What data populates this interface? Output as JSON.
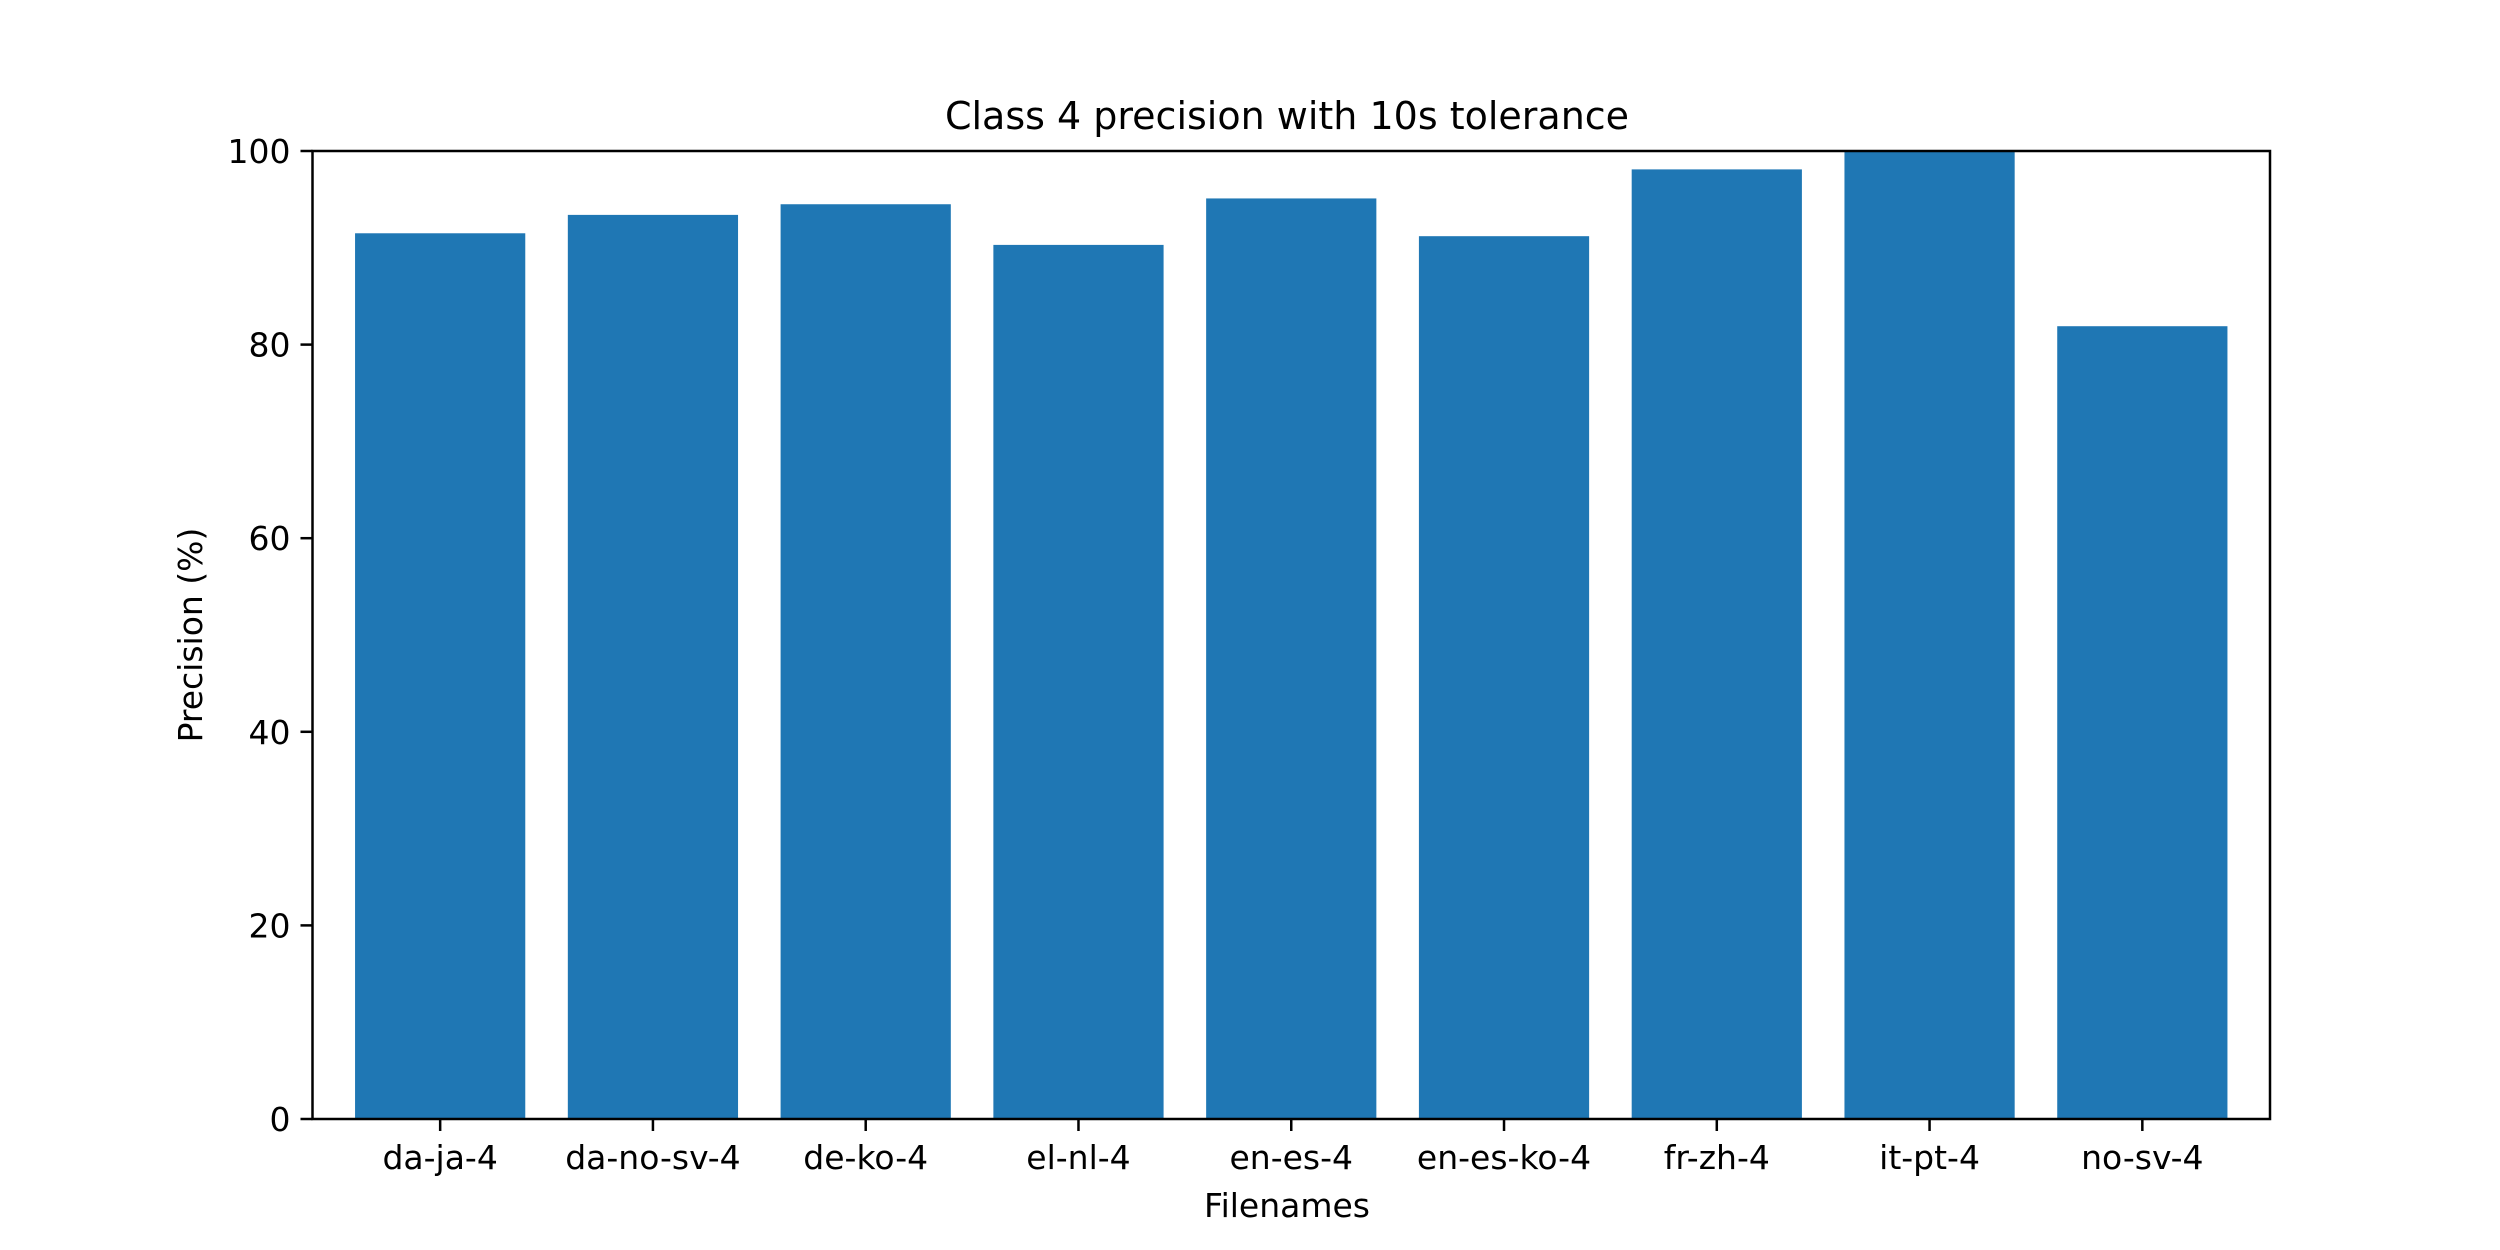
{
  "chart_data": {
    "type": "bar",
    "title": "Class 4 precision with 10s tolerance",
    "xlabel": "Filenames",
    "ylabel": "Precision (%)",
    "categories": [
      "da-ja-4",
      "da-no-sv-4",
      "de-ko-4",
      "el-nl-4",
      "en-es-4",
      "en-es-ko-4",
      "fr-zh-4",
      "it-pt-4",
      "no-sv-4"
    ],
    "values": [
      91.5,
      93.4,
      94.5,
      90.3,
      95.1,
      91.2,
      98.1,
      100.0,
      81.9
    ],
    "ylim": [
      0,
      100
    ],
    "yticks": [
      "0",
      "20",
      "40",
      "60",
      "80",
      "100"
    ],
    "bar_color": "#1f77b4",
    "grid": false
  }
}
